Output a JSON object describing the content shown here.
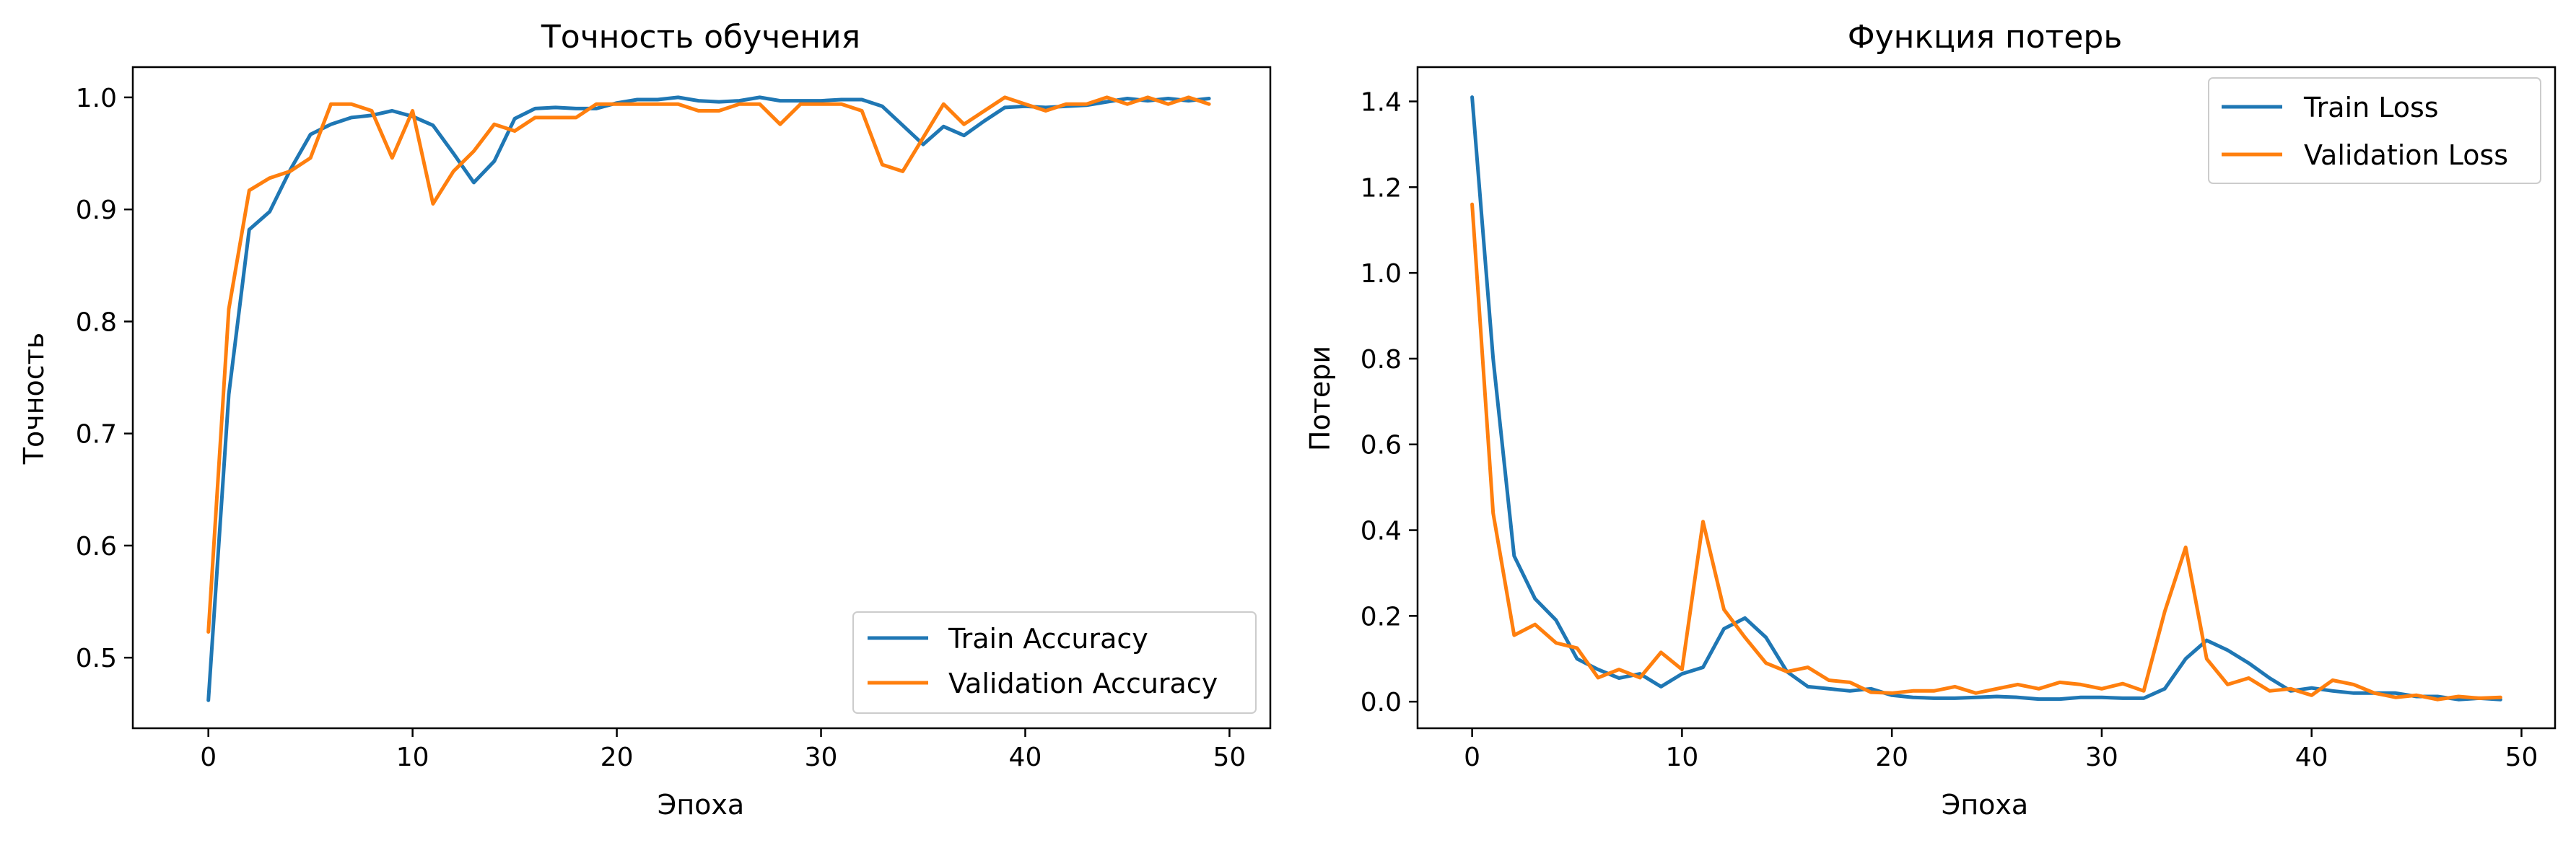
{
  "colors": {
    "train": "#1f77b4",
    "validation": "#ff7f0e"
  },
  "chart_data": [
    {
      "type": "line",
      "title": "Точность обучения",
      "xlabel": "Эпоха",
      "ylabel": "Точность",
      "xlim": [
        -3.7,
        52.0
      ],
      "ylim": [
        0.437,
        1.027
      ],
      "xticks": [
        0,
        10,
        20,
        30,
        40,
        50
      ],
      "yticks": [
        0.5,
        0.6,
        0.7,
        0.8,
        0.9,
        1.0
      ],
      "ytick_labels": [
        "0.5",
        "0.6",
        "0.7",
        "0.8",
        "0.9",
        "1.0"
      ],
      "grid": false,
      "legend_position": "lower-right",
      "series": [
        {
          "name": "Train Accuracy",
          "color": "#1f77b4",
          "x": [
            0,
            1,
            2,
            3,
            4,
            5,
            6,
            7,
            8,
            9,
            10,
            11,
            12,
            13,
            14,
            15,
            16,
            17,
            18,
            19,
            20,
            21,
            22,
            23,
            24,
            25,
            26,
            27,
            28,
            29,
            30,
            31,
            32,
            33,
            34,
            35,
            36,
            37,
            38,
            39,
            40,
            41,
            42,
            43,
            44,
            45,
            46,
            47,
            48,
            49
          ],
          "values": [
            0.462,
            0.735,
            0.882,
            0.898,
            0.935,
            0.967,
            0.976,
            0.982,
            0.984,
            0.988,
            0.983,
            0.975,
            0.95,
            0.924,
            0.943,
            0.981,
            0.99,
            0.991,
            0.99,
            0.99,
            0.995,
            0.998,
            0.998,
            1.0,
            0.997,
            0.996,
            0.997,
            1.0,
            0.997,
            0.997,
            0.997,
            0.998,
            0.998,
            0.992,
            0.975,
            0.958,
            0.974,
            0.966,
            0.979,
            0.991,
            0.992,
            0.991,
            0.992,
            0.993,
            0.996,
            0.999,
            0.997,
            0.999,
            0.997,
            0.999
          ]
        },
        {
          "name": "Validation Accuracy",
          "color": "#ff7f0e",
          "x": [
            0,
            1,
            2,
            3,
            4,
            5,
            6,
            7,
            8,
            9,
            10,
            11,
            12,
            13,
            14,
            15,
            16,
            17,
            18,
            19,
            20,
            21,
            22,
            23,
            24,
            25,
            26,
            27,
            28,
            29,
            30,
            31,
            32,
            33,
            34,
            35,
            36,
            37,
            38,
            39,
            40,
            41,
            42,
            43,
            44,
            45,
            46,
            47,
            48,
            49
          ],
          "values": [
            0.523,
            0.811,
            0.917,
            0.928,
            0.934,
            0.946,
            0.994,
            0.994,
            0.988,
            0.946,
            0.988,
            0.905,
            0.934,
            0.952,
            0.976,
            0.97,
            0.982,
            0.982,
            0.982,
            0.994,
            0.994,
            0.994,
            0.994,
            0.994,
            0.988,
            0.988,
            0.994,
            0.994,
            0.976,
            0.994,
            0.994,
            0.994,
            0.988,
            0.94,
            0.934,
            0.964,
            0.994,
            0.976,
            0.988,
            1.0,
            0.994,
            0.988,
            0.994,
            0.994,
            1.0,
            0.994,
            1.0,
            0.994,
            1.0,
            0.994
          ]
        }
      ]
    },
    {
      "type": "line",
      "title": "Функция потерь",
      "xlabel": "Эпоха",
      "ylabel": "Потери",
      "xlim": [
        -2.6,
        51.6
      ],
      "ylim": [
        -0.062,
        1.48
      ],
      "xticks": [
        0,
        10,
        20,
        30,
        40,
        50
      ],
      "yticks": [
        0.0,
        0.2,
        0.4,
        0.6,
        0.8,
        1.0,
        1.2,
        1.4
      ],
      "ytick_labels": [
        "0.0",
        "0.2",
        "0.4",
        "0.6",
        "0.8",
        "1.0",
        "1.2",
        "1.4"
      ],
      "grid": false,
      "legend_position": "upper-right",
      "series": [
        {
          "name": "Train Loss",
          "color": "#1f77b4",
          "x": [
            0,
            1,
            2,
            3,
            4,
            5,
            6,
            7,
            8,
            9,
            10,
            11,
            12,
            13,
            14,
            15,
            16,
            17,
            18,
            19,
            20,
            21,
            22,
            23,
            24,
            25,
            26,
            27,
            28,
            29,
            30,
            31,
            32,
            33,
            34,
            35,
            36,
            37,
            38,
            39,
            40,
            41,
            42,
            43,
            44,
            45,
            46,
            47,
            48,
            49
          ],
          "values": [
            1.41,
            0.8,
            0.34,
            0.24,
            0.19,
            0.1,
            0.075,
            0.055,
            0.065,
            0.035,
            0.065,
            0.08,
            0.17,
            0.195,
            0.15,
            0.07,
            0.035,
            0.03,
            0.025,
            0.03,
            0.015,
            0.01,
            0.008,
            0.008,
            0.01,
            0.012,
            0.01,
            0.006,
            0.006,
            0.01,
            0.01,
            0.008,
            0.008,
            0.03,
            0.1,
            0.143,
            0.12,
            0.09,
            0.055,
            0.025,
            0.032,
            0.025,
            0.02,
            0.02,
            0.02,
            0.012,
            0.012,
            0.005,
            0.008,
            0.005
          ]
        },
        {
          "name": "Validation Loss",
          "color": "#ff7f0e",
          "x": [
            0,
            1,
            2,
            3,
            4,
            5,
            6,
            7,
            8,
            9,
            10,
            11,
            12,
            13,
            14,
            15,
            16,
            17,
            18,
            19,
            20,
            21,
            22,
            23,
            24,
            25,
            26,
            27,
            28,
            29,
            30,
            31,
            32,
            33,
            34,
            35,
            36,
            37,
            38,
            39,
            40,
            41,
            42,
            43,
            44,
            45,
            46,
            47,
            48,
            49
          ],
          "values": [
            1.16,
            0.44,
            0.155,
            0.18,
            0.137,
            0.125,
            0.056,
            0.075,
            0.056,
            0.115,
            0.075,
            0.42,
            0.215,
            0.15,
            0.09,
            0.07,
            0.08,
            0.05,
            0.045,
            0.022,
            0.02,
            0.025,
            0.025,
            0.035,
            0.02,
            0.03,
            0.04,
            0.03,
            0.045,
            0.04,
            0.03,
            0.042,
            0.025,
            0.21,
            0.36,
            0.1,
            0.04,
            0.055,
            0.025,
            0.03,
            0.015,
            0.05,
            0.04,
            0.02,
            0.01,
            0.015,
            0.005,
            0.012,
            0.008,
            0.01
          ]
        }
      ]
    }
  ]
}
